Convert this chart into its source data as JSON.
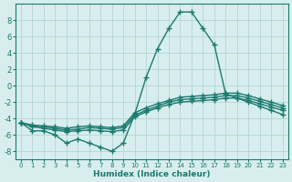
{
  "xlabel": "Humidex (Indice chaleur)",
  "x": [
    0,
    1,
    2,
    3,
    4,
    5,
    6,
    7,
    8,
    9,
    10,
    11,
    12,
    13,
    14,
    15,
    16,
    17,
    18,
    19,
    20,
    21,
    22,
    23
  ],
  "line_main": [
    -4.5,
    -5.5,
    -5.5,
    -6,
    -7,
    -6.5,
    -7,
    -7.5,
    -8,
    -7,
    -3.5,
    1,
    4.5,
    7,
    9,
    9,
    7,
    5,
    -1,
    -1.5,
    -2,
    -2.5,
    -3,
    -3.5
  ],
  "line2": [
    -4.5,
    -5.0,
    -5.2,
    -5.4,
    -5.6,
    -5.5,
    -5.4,
    -5.5,
    -5.6,
    -5.4,
    -3.8,
    -3.2,
    -2.7,
    -2.3,
    -2.0,
    -1.9,
    -1.8,
    -1.7,
    -1.5,
    -1.5,
    -1.8,
    -2.2,
    -2.6,
    -3.0
  ],
  "line3": [
    -4.5,
    -4.9,
    -5.0,
    -5.2,
    -5.4,
    -5.3,
    -5.1,
    -5.2,
    -5.3,
    -5.1,
    -3.6,
    -3.0,
    -2.5,
    -2.0,
    -1.7,
    -1.6,
    -1.5,
    -1.4,
    -1.2,
    -1.2,
    -1.5,
    -1.9,
    -2.3,
    -2.7
  ],
  "line4": [
    -4.5,
    -4.8,
    -4.9,
    -5.0,
    -5.2,
    -5.0,
    -4.9,
    -5.0,
    -5.1,
    -4.9,
    -3.3,
    -2.7,
    -2.2,
    -1.8,
    -1.4,
    -1.3,
    -1.2,
    -1.1,
    -0.9,
    -0.9,
    -1.2,
    -1.6,
    -2.0,
    -2.4
  ],
  "line_color": "#1a7a6e",
  "bg_color": "#d8eeee",
  "grid_color": "#b8d8d8",
  "ylim": [
    -9,
    10
  ],
  "xlim": [
    -0.5,
    23.5
  ],
  "yticks": [
    -8,
    -6,
    -4,
    -2,
    0,
    2,
    4,
    6,
    8
  ],
  "xticks": [
    0,
    1,
    2,
    3,
    4,
    5,
    6,
    7,
    8,
    9,
    10,
    11,
    12,
    13,
    14,
    15,
    16,
    17,
    18,
    19,
    20,
    21,
    22,
    23
  ],
  "marker": "+",
  "markersize": 4,
  "linewidth": 1.0
}
